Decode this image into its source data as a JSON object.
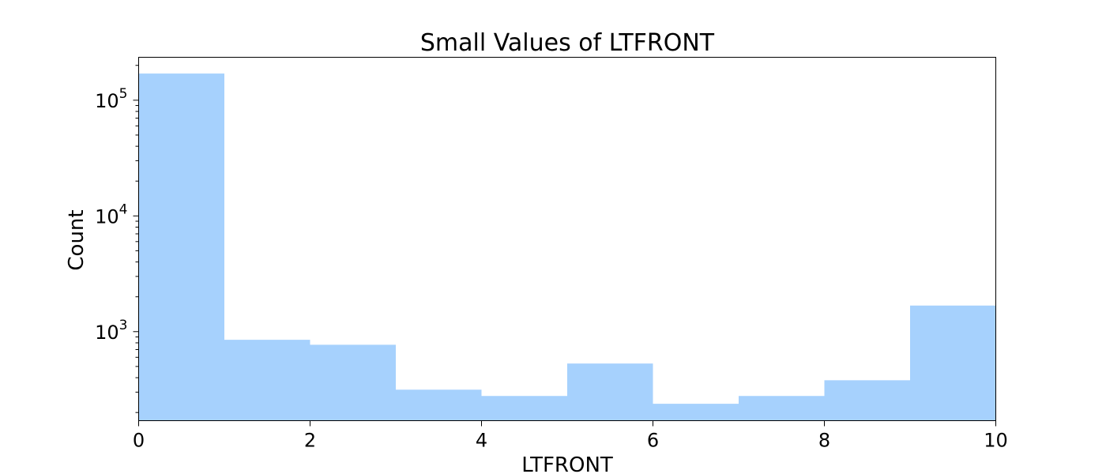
{
  "chart_data": {
    "type": "bar",
    "title": "Small Values of LTFRONT",
    "xlabel": "LTFRONT",
    "ylabel": "Count",
    "yscale": "log",
    "xlim": [
      0,
      10
    ],
    "ylim": [
      170,
      235000
    ],
    "bins": [
      {
        "x0": 0,
        "x1": 1,
        "count": 170000
      },
      {
        "x0": 1,
        "x1": 2,
        "count": 850
      },
      {
        "x0": 2,
        "x1": 3,
        "count": 770
      },
      {
        "x0": 3,
        "x1": 4,
        "count": 315
      },
      {
        "x0": 4,
        "x1": 5,
        "count": 278
      },
      {
        "x0": 5,
        "x1": 6,
        "count": 530
      },
      {
        "x0": 6,
        "x1": 7,
        "count": 238
      },
      {
        "x0": 7,
        "x1": 8,
        "count": 278
      },
      {
        "x0": 8,
        "x1": 9,
        "count": 380
      },
      {
        "x0": 9,
        "x1": 10,
        "count": 1680
      }
    ],
    "x_ticks": [
      0,
      2,
      4,
      6,
      8,
      10
    ],
    "y_major_ticks": [
      {
        "value": 1000,
        "base": "10",
        "exp": "3"
      },
      {
        "value": 10000,
        "base": "10",
        "exp": "4"
      },
      {
        "value": 100000,
        "base": "10",
        "exp": "5"
      }
    ],
    "bar_color": "#a6d1fd",
    "grid": false,
    "legend": "none"
  }
}
